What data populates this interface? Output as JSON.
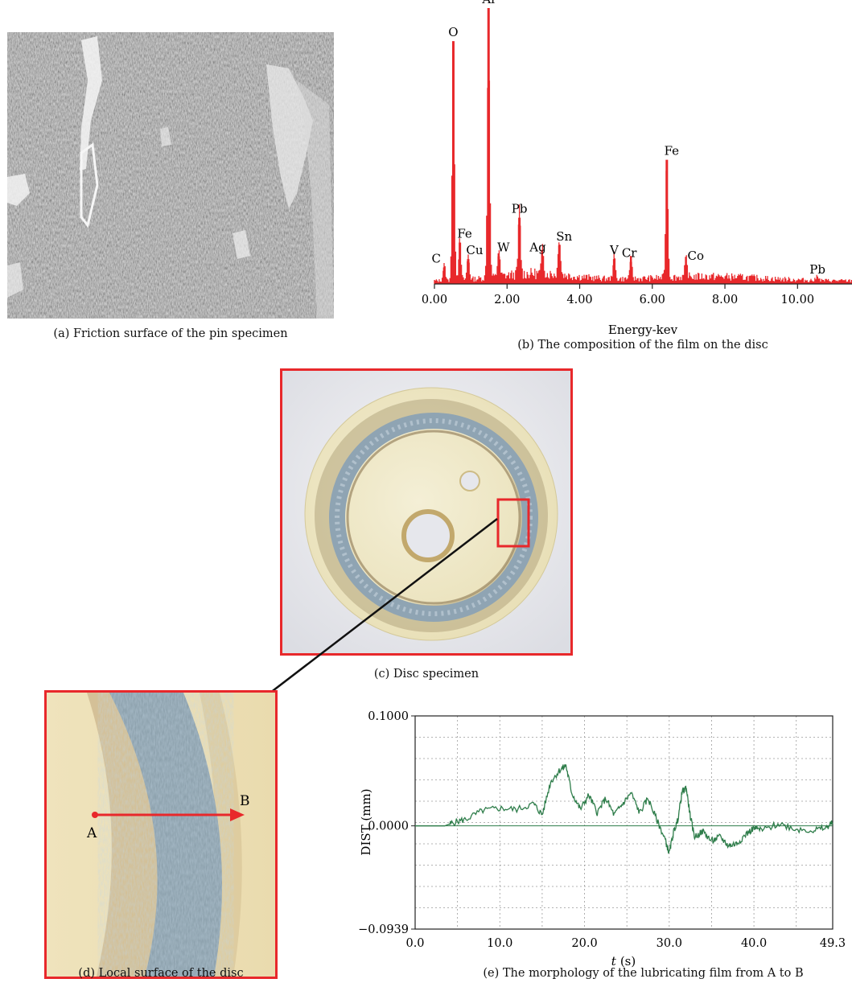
{
  "captions": {
    "a": "(a) Friction surface of the pin specimen",
    "b": "(b) The composition of the film on the disc",
    "c": "(c) Disc specimen",
    "d": "(d) Local surface of the disc",
    "e": "(e) The morphology of the lubricating film from A to B"
  },
  "point_labels": {
    "a": "A",
    "b": "B"
  },
  "chart_data": [
    {
      "type": "bar",
      "title": "",
      "xlabel": "Energy-kev",
      "ylabel": "",
      "xlim": [
        0,
        11.5
      ],
      "xticks": [
        "0.00",
        "2.00",
        "4.00",
        "6.00",
        "8.00",
        "10.00"
      ],
      "color": "#e8282b",
      "peaks": [
        {
          "label": "C",
          "x": 0.27,
          "y": 0.06
        },
        {
          "label": "O",
          "x": 0.52,
          "y": 0.88
        },
        {
          "label": "Fe",
          "x": 0.7,
          "y": 0.15
        },
        {
          "label": "Cu",
          "x": 0.93,
          "y": 0.09
        },
        {
          "label": "Al",
          "x": 1.49,
          "y": 1.0
        },
        {
          "label": "W",
          "x": 1.77,
          "y": 0.1
        },
        {
          "label": "Pb",
          "x": 2.34,
          "y": 0.24
        },
        {
          "label": "Ag",
          "x": 2.98,
          "y": 0.1
        },
        {
          "label": "Sn",
          "x": 3.44,
          "y": 0.14
        },
        {
          "label": "V",
          "x": 4.95,
          "y": 0.09
        },
        {
          "label": "Cr",
          "x": 5.41,
          "y": 0.08
        },
        {
          "label": "Fe",
          "x": 6.4,
          "y": 0.45
        },
        {
          "label": "Co",
          "x": 6.93,
          "y": 0.07
        },
        {
          "label": "Pb",
          "x": 10.55,
          "y": 0.02
        }
      ]
    },
    {
      "type": "line",
      "title": "",
      "xlabel": "t",
      "xlabel_unit": "(s)",
      "ylabel": "DIST (mm)",
      "xlim": [
        0,
        49.3
      ],
      "ylim": [
        -0.0939,
        0.1
      ],
      "xticks": [
        "0.0",
        "10.0",
        "20.0",
        "30.0",
        "40.0",
        "49.3"
      ],
      "yticks": [
        "0.1000",
        "0.0000",
        "−0.0939"
      ],
      "grid": true,
      "color": "#2e7d4a",
      "series": [
        {
          "x": [
            0,
            3.5,
            4.5,
            6,
            8,
            10,
            12,
            14,
            15,
            16,
            17,
            17.8,
            18.5,
            19.5,
            20.5,
            21.5,
            22.5,
            23.5,
            24.5,
            25.5,
            26.5,
            27.5,
            28.5,
            29.5,
            30.0,
            30.5,
            31.0,
            31.5,
            32.0,
            32.5,
            33.0,
            34,
            35,
            36,
            37,
            38,
            39,
            40,
            41,
            43,
            45,
            47,
            48.5,
            49.3
          ],
          "y": [
            0,
            0,
            0.003,
            0.006,
            0.014,
            0.016,
            0.015,
            0.02,
            0.01,
            0.04,
            0.05,
            0.055,
            0.03,
            0.015,
            0.028,
            0.012,
            0.025,
            0.01,
            0.02,
            0.03,
            0.012,
            0.025,
            0.006,
            -0.012,
            -0.025,
            -0.006,
            0.005,
            0.03,
            0.035,
            0.008,
            -0.01,
            -0.005,
            -0.014,
            -0.01,
            -0.018,
            -0.016,
            -0.008,
            -0.002,
            -0.004,
            0.002,
            -0.003,
            -0.004,
            -0.002,
            0.003
          ]
        }
      ]
    }
  ]
}
